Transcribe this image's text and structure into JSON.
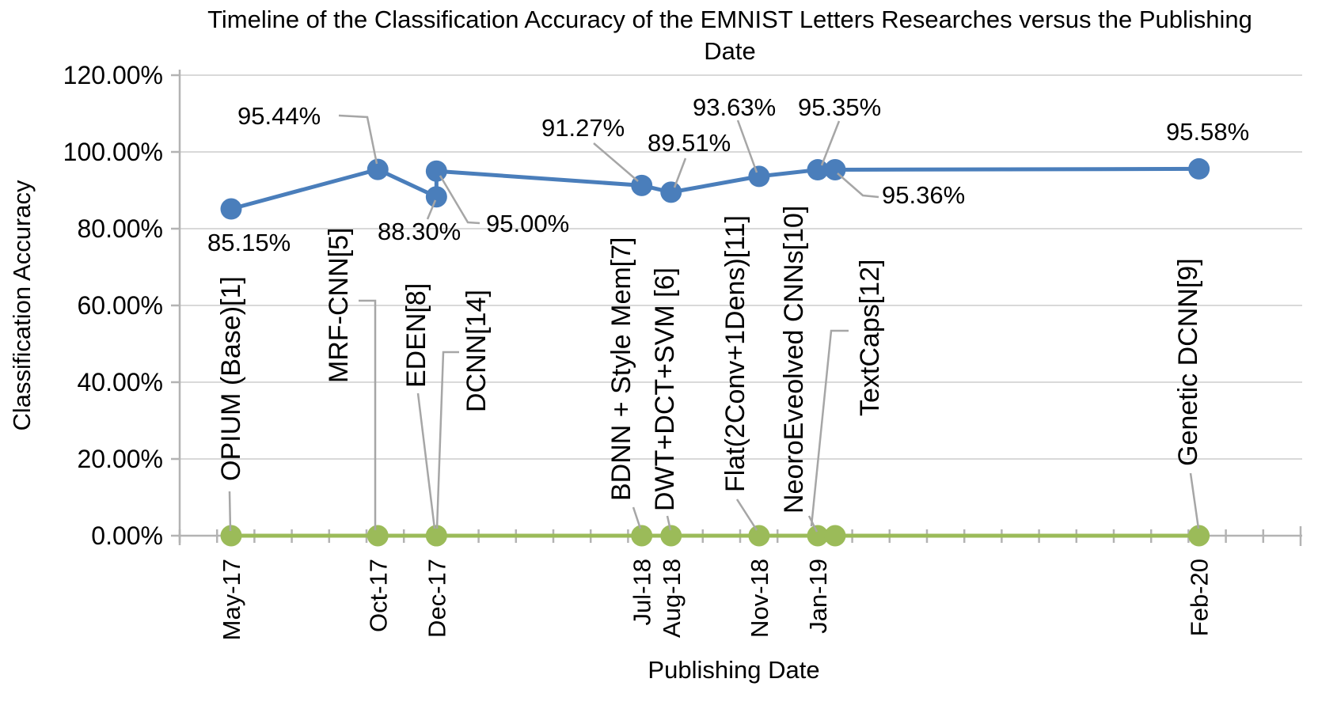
{
  "chart_data": {
    "type": "line",
    "title": "Timeline of the Classification Accuracy of the EMNIST Letters Researches versus the Publishing Date",
    "title_lines": [
      "Timeline of the Classification Accuracy of the EMNIST Letters Researches versus the Publishing",
      "Date"
    ],
    "xlabel": "Publishing Date",
    "ylabel": "Classification Accuracy",
    "ylim": [
      0,
      120
    ],
    "grid": true,
    "legend": false,
    "y_tick_values": [
      0,
      20,
      40,
      60,
      80,
      100,
      120
    ],
    "y_tick_labels": [
      "0.00%",
      "20.00%",
      "40.00%",
      "60.00%",
      "80.00%",
      "100.00%",
      "120.00%"
    ],
    "x_ticks": [
      {
        "label": "May-17",
        "month": 0
      },
      {
        "label": "Oct-17",
        "month": 5
      },
      {
        "label": "Dec-17",
        "month": 7
      },
      {
        "label": "Jul-18",
        "month": 14
      },
      {
        "label": "Aug-18",
        "month": 15
      },
      {
        "label": "Nov-18",
        "month": 18
      },
      {
        "label": "Jan-19",
        "month": 20
      },
      {
        "label": "Feb-20",
        "month": 33
      }
    ],
    "series": [
      {
        "name": "classification-accuracy",
        "color": "#4a7ebb",
        "points": [
          {
            "method": "OPIUM (Base)[1]",
            "date": "May-17",
            "month": 0,
            "value": 85.15,
            "label": "85.15%"
          },
          {
            "method": "MRF-CNN[5]",
            "date": "Oct-17",
            "month": 5,
            "value": 95.44,
            "label": "95.44%"
          },
          {
            "method": "EDEN[8]",
            "date": "Dec-17",
            "month": 7,
            "value": 88.3,
            "label": "88.30%"
          },
          {
            "method": "DCNN[14]",
            "date": "Dec-17",
            "month": 7,
            "value": 95.0,
            "label": "95.00%"
          },
          {
            "method": "BDNN + Style Mem[7]",
            "date": "Jul-18",
            "month": 14,
            "value": 91.27,
            "label": "91.27%"
          },
          {
            "method": "DWT+DCT+SVM [6]",
            "date": "Aug-18",
            "month": 15,
            "value": 89.51,
            "label": "89.51%"
          },
          {
            "method": "Flat(2Conv+1Dens)[11]",
            "date": "Nov-18",
            "month": 18,
            "value": 93.63,
            "label": "93.63%"
          },
          {
            "method": "NeoroEveolved CNNs[10]",
            "date": "Jan-19",
            "month": 20,
            "value": 95.35,
            "label": "95.35%"
          },
          {
            "method": "TextCaps[12]",
            "date": "Jan-19",
            "month": 20,
            "value": 95.36,
            "label": "95.36%"
          },
          {
            "method": "Genetic DCNN[9]",
            "date": "Feb-20",
            "month": 33,
            "value": 95.58,
            "label": "95.58%"
          }
        ]
      },
      {
        "name": "publishing-timeline",
        "color": "#9bbb59",
        "value": 0
      }
    ],
    "colors": {
      "accuracy_series": "#4a7ebb",
      "timeline_series": "#9bbb59",
      "gridline": "#d9d9d9",
      "axis": "#b3b3b3",
      "leader_line": "#a6a6a6",
      "text": "#000000"
    }
  }
}
